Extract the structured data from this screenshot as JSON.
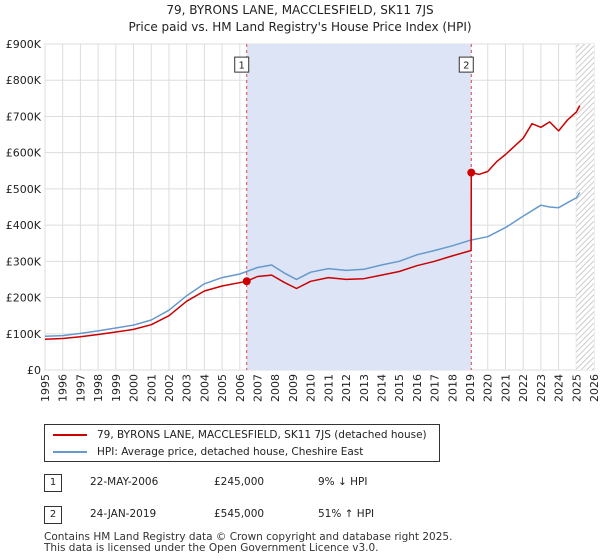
{
  "title": {
    "line1": "79, BYRONS LANE, MACCLESFIELD, SK11 7JS",
    "line2": "Price paid vs. HM Land Registry's House Price Index (HPI)"
  },
  "legend": {
    "property": "79, BYRONS LANE, MACCLESFIELD, SK11 7JS (detached house)",
    "hpi": "HPI: Average price, detached house, Cheshire East"
  },
  "colors": {
    "property": "#cc0000",
    "hpi": "#6699cc",
    "shade": "#dde4f5",
    "vline": "#dd4444",
    "grid": "#dddddd"
  },
  "sales": [
    {
      "num": "1",
      "date": "22-MAY-2006",
      "price": "£245,000",
      "hpi": "9% ↓ HPI"
    },
    {
      "num": "2",
      "date": "24-JAN-2019",
      "price": "£545,000",
      "hpi": "51% ↑ HPI"
    }
  ],
  "footer": {
    "line1": "Contains HM Land Registry data © Crown copyright and database right 2025.",
    "line2": "This data is licensed under the Open Government Licence v3.0."
  },
  "chart_data": {
    "type": "line",
    "title": "Price paid vs. HM Land Registry's House Price Index (HPI)",
    "xlabel": "",
    "ylabel": "",
    "xlim": [
      1995,
      2026
    ],
    "ylim": [
      0,
      900000
    ],
    "x_ticks": [
      1995,
      1996,
      1997,
      1998,
      1999,
      2000,
      2001,
      2002,
      2003,
      2004,
      2005,
      2006,
      2007,
      2008,
      2009,
      2010,
      2011,
      2012,
      2013,
      2014,
      2015,
      2016,
      2017,
      2018,
      2019,
      2020,
      2021,
      2022,
      2023,
      2024,
      2025,
      2026
    ],
    "y_ticks": [
      {
        "value": 0,
        "label": "£0"
      },
      {
        "value": 100000,
        "label": "£100K"
      },
      {
        "value": 200000,
        "label": "£200K"
      },
      {
        "value": 300000,
        "label": "£300K"
      },
      {
        "value": 400000,
        "label": "£400K"
      },
      {
        "value": 500000,
        "label": "£500K"
      },
      {
        "value": 600000,
        "label": "£600K"
      },
      {
        "value": 700000,
        "label": "£700K"
      },
      {
        "value": 800000,
        "label": "£800K"
      },
      {
        "value": 900000,
        "label": "£900K"
      }
    ],
    "shaded_period": {
      "from": 2006.39,
      "to": 2019.07
    },
    "forecast_from": 2025.0,
    "markers": [
      {
        "label": "1",
        "x": 2006.39,
        "y": 245000
      },
      {
        "label": "2",
        "x": 2019.07,
        "y": 545000
      }
    ],
    "series": [
      {
        "name": "79, BYRONS LANE, MACCLESFIELD, SK11 7JS (detached house)",
        "color": "#cc0000",
        "points": [
          [
            1995,
            85000
          ],
          [
            1996,
            87000
          ],
          [
            1997,
            92000
          ],
          [
            1998,
            98000
          ],
          [
            1999,
            105000
          ],
          [
            2000,
            112000
          ],
          [
            2001,
            125000
          ],
          [
            2002,
            150000
          ],
          [
            2003,
            190000
          ],
          [
            2004,
            218000
          ],
          [
            2005,
            232000
          ],
          [
            2006.39,
            245000
          ],
          [
            2007,
            258000
          ],
          [
            2007.8,
            262000
          ],
          [
            2008.5,
            242000
          ],
          [
            2009.2,
            225000
          ],
          [
            2010,
            245000
          ],
          [
            2011,
            255000
          ],
          [
            2012,
            250000
          ],
          [
            2013,
            252000
          ],
          [
            2014,
            262000
          ],
          [
            2015,
            272000
          ],
          [
            2016,
            288000
          ],
          [
            2017,
            300000
          ],
          [
            2018,
            315000
          ],
          [
            2019.06,
            330000
          ],
          [
            2019.07,
            545000
          ],
          [
            2019.5,
            540000
          ],
          [
            2020,
            548000
          ],
          [
            2020.5,
            575000
          ],
          [
            2021,
            595000
          ],
          [
            2022,
            640000
          ],
          [
            2022.5,
            680000
          ],
          [
            2023,
            670000
          ],
          [
            2023.5,
            685000
          ],
          [
            2024,
            660000
          ],
          [
            2024.5,
            690000
          ],
          [
            2025,
            712000
          ],
          [
            2025.2,
            730000
          ]
        ]
      },
      {
        "name": "HPI: Average price, detached house, Cheshire East",
        "color": "#6699cc",
        "points": [
          [
            1995,
            93000
          ],
          [
            1996,
            95000
          ],
          [
            1997,
            101000
          ],
          [
            1998,
            108000
          ],
          [
            1999,
            116000
          ],
          [
            2000,
            124000
          ],
          [
            2001,
            138000
          ],
          [
            2002,
            165000
          ],
          [
            2003,
            205000
          ],
          [
            2004,
            238000
          ],
          [
            2005,
            255000
          ],
          [
            2006,
            265000
          ],
          [
            2007,
            283000
          ],
          [
            2007.8,
            290000
          ],
          [
            2008.5,
            268000
          ],
          [
            2009.2,
            250000
          ],
          [
            2010,
            270000
          ],
          [
            2011,
            280000
          ],
          [
            2012,
            275000
          ],
          [
            2013,
            278000
          ],
          [
            2014,
            290000
          ],
          [
            2015,
            300000
          ],
          [
            2016,
            318000
          ],
          [
            2017,
            330000
          ],
          [
            2018,
            343000
          ],
          [
            2019,
            358000
          ],
          [
            2020,
            368000
          ],
          [
            2021,
            393000
          ],
          [
            2022,
            425000
          ],
          [
            2023,
            455000
          ],
          [
            2023.5,
            450000
          ],
          [
            2024,
            448000
          ],
          [
            2024.5,
            462000
          ],
          [
            2025,
            475000
          ],
          [
            2025.2,
            490000
          ]
        ]
      }
    ]
  }
}
